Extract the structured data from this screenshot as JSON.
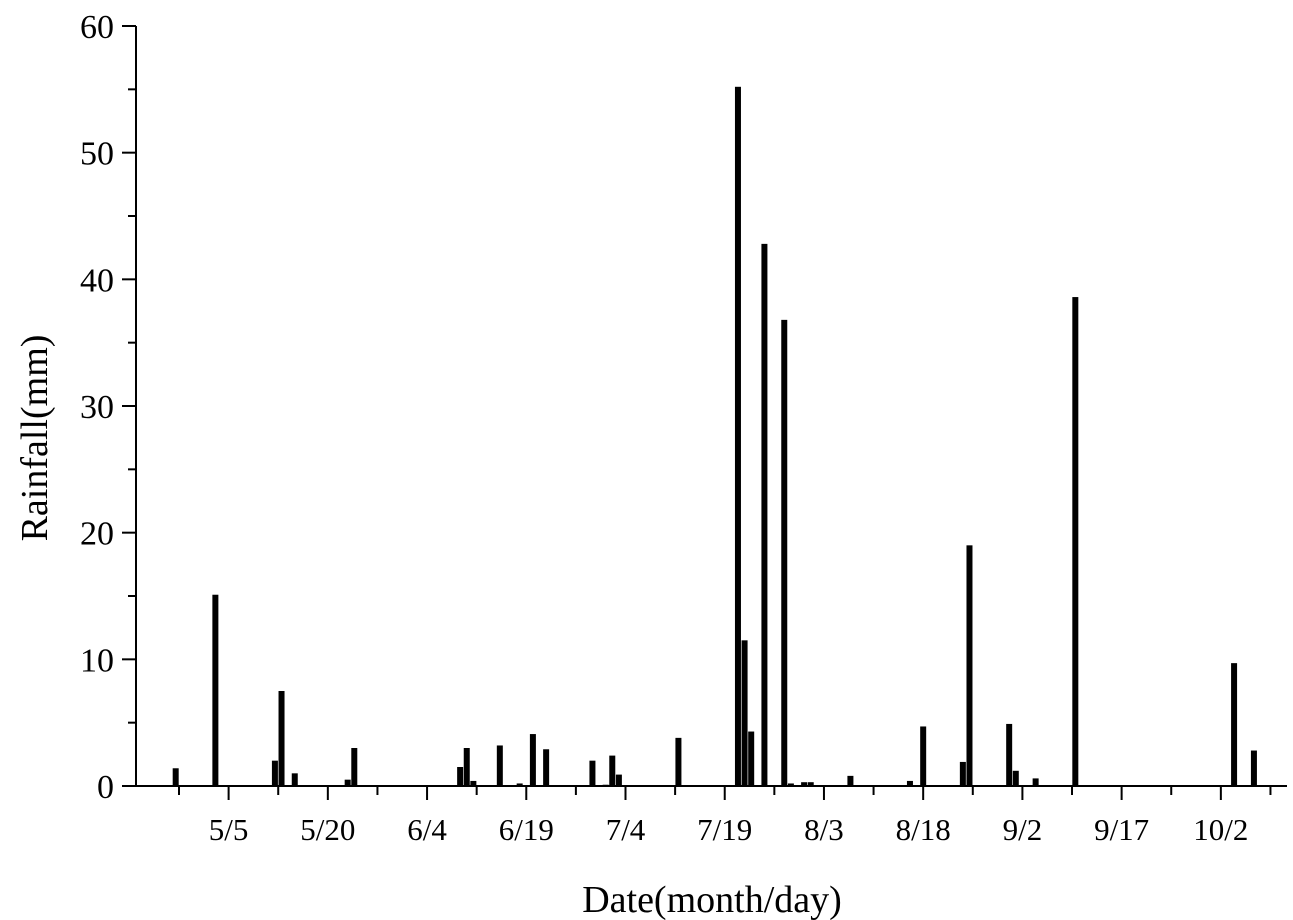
{
  "chart_data": {
    "type": "bar",
    "xlabel": "Date(month/day)",
    "ylabel": "Rainfall(mm)",
    "ylim": [
      0,
      60
    ],
    "yticks": [
      0,
      10,
      20,
      30,
      40,
      50,
      60
    ],
    "xlim": [
      "2000-04-21",
      "2000-10-12"
    ],
    "xticks": [
      {
        "date": "2000-05-05",
        "label": "5/5"
      },
      {
        "date": "2000-05-20",
        "label": "5/20"
      },
      {
        "date": "2000-06-04",
        "label": "6/4"
      },
      {
        "date": "2000-06-19",
        "label": "6/19"
      },
      {
        "date": "2000-07-04",
        "label": "7/4"
      },
      {
        "date": "2000-07-19",
        "label": "7/19"
      },
      {
        "date": "2000-08-03",
        "label": "8/3"
      },
      {
        "date": "2000-08-18",
        "label": "8/18"
      },
      {
        "date": "2000-09-02",
        "label": "9/2"
      },
      {
        "date": "2000-09-17",
        "label": "9/17"
      },
      {
        "date": "2000-10-02",
        "label": "10/2"
      }
    ],
    "minor_ticks": "midway between labeled ticks",
    "grid": false,
    "legend": false,
    "bar_color": "#000000",
    "x": [
      "2000-04-27",
      "2000-05-03",
      "2000-05-12",
      "2000-05-13",
      "2000-05-15",
      "2000-05-23",
      "2000-05-24",
      "2000-06-09",
      "2000-06-10",
      "2000-06-11",
      "2000-06-15",
      "2000-06-18",
      "2000-06-20",
      "2000-06-22",
      "2000-06-29",
      "2000-07-01",
      "2000-07-02",
      "2000-07-03",
      "2000-07-12",
      "2000-07-21",
      "2000-07-22",
      "2000-07-23",
      "2000-07-25",
      "2000-07-28",
      "2000-07-29",
      "2000-07-31",
      "2000-08-01",
      "2000-08-07",
      "2000-08-16",
      "2000-08-18",
      "2000-08-24",
      "2000-08-25",
      "2000-08-31",
      "2000-09-01",
      "2000-09-04",
      "2000-09-10",
      "2000-10-04",
      "2000-10-07"
    ],
    "values": [
      1.4,
      15.1,
      2.0,
      7.5,
      1.0,
      0.5,
      3.0,
      1.5,
      3.0,
      0.4,
      3.2,
      0.2,
      4.1,
      2.9,
      2.0,
      0.1,
      2.4,
      0.9,
      3.8,
      55.2,
      11.5,
      4.3,
      42.8,
      36.8,
      0.2,
      0.3,
      0.3,
      0.8,
      0.4,
      4.7,
      1.9,
      19.0,
      4.9,
      1.2,
      0.6,
      38.6,
      9.7,
      2.8
    ]
  }
}
